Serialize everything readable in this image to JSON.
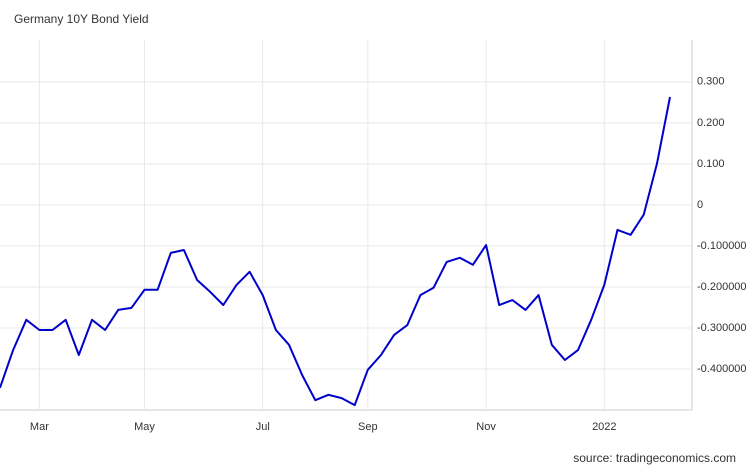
{
  "chart_data": {
    "type": "line",
    "title": "Germany 10Y Bond Yield",
    "source": "source: tradingeconomics.com",
    "categories": [
      null,
      null,
      null,
      "Mar",
      null,
      null,
      null,
      null,
      null,
      null,
      null,
      "May",
      null,
      null,
      null,
      null,
      null,
      null,
      null,
      null,
      "Jul",
      null,
      null,
      null,
      null,
      null,
      null,
      null,
      "Sep",
      null,
      null,
      null,
      null,
      null,
      null,
      null,
      null,
      "Nov",
      null,
      null,
      null,
      null,
      null,
      null,
      null,
      null,
      "2022",
      null,
      null,
      null,
      null,
      null
    ],
    "series": [
      {
        "name": "Germany 10Y Bond Yield",
        "color": "#0000cc",
        "values": [
          -0.446,
          -0.354,
          -0.28,
          -0.305,
          -0.305,
          -0.28,
          -0.366,
          -0.28,
          -0.305,
          -0.256,
          -0.251,
          -0.207,
          -0.207,
          -0.117,
          -0.11,
          -0.183,
          -0.212,
          -0.244,
          -0.195,
          -0.163,
          -0.22,
          -0.305,
          -0.341,
          -0.415,
          -0.476,
          -0.463,
          -0.471,
          -0.488,
          -0.402,
          -0.366,
          -0.317,
          -0.293,
          -0.22,
          -0.202,
          -0.139,
          -0.129,
          -0.146,
          -0.098,
          -0.244,
          -0.232,
          -0.256,
          -0.22,
          -0.341,
          -0.378,
          -0.354,
          -0.28,
          -0.195,
          -0.061,
          -0.073,
          -0.024,
          0.1,
          0.263
        ]
      }
    ],
    "ylim": [
      -0.5,
      0.402
    ],
    "yticks": [
      {
        "value": -0.4,
        "label": "-0.400000"
      },
      {
        "value": -0.3,
        "label": "-0.300000"
      },
      {
        "value": -0.2,
        "label": "-0.200000"
      },
      {
        "value": -0.1,
        "label": "-0.100000"
      },
      0,
      {
        "value": 0.1,
        "label": "0.100"
      },
      {
        "value": 0.2,
        "label": "0.200"
      },
      {
        "value": 0.3,
        "label": "0.300"
      }
    ],
    "grid": true
  }
}
